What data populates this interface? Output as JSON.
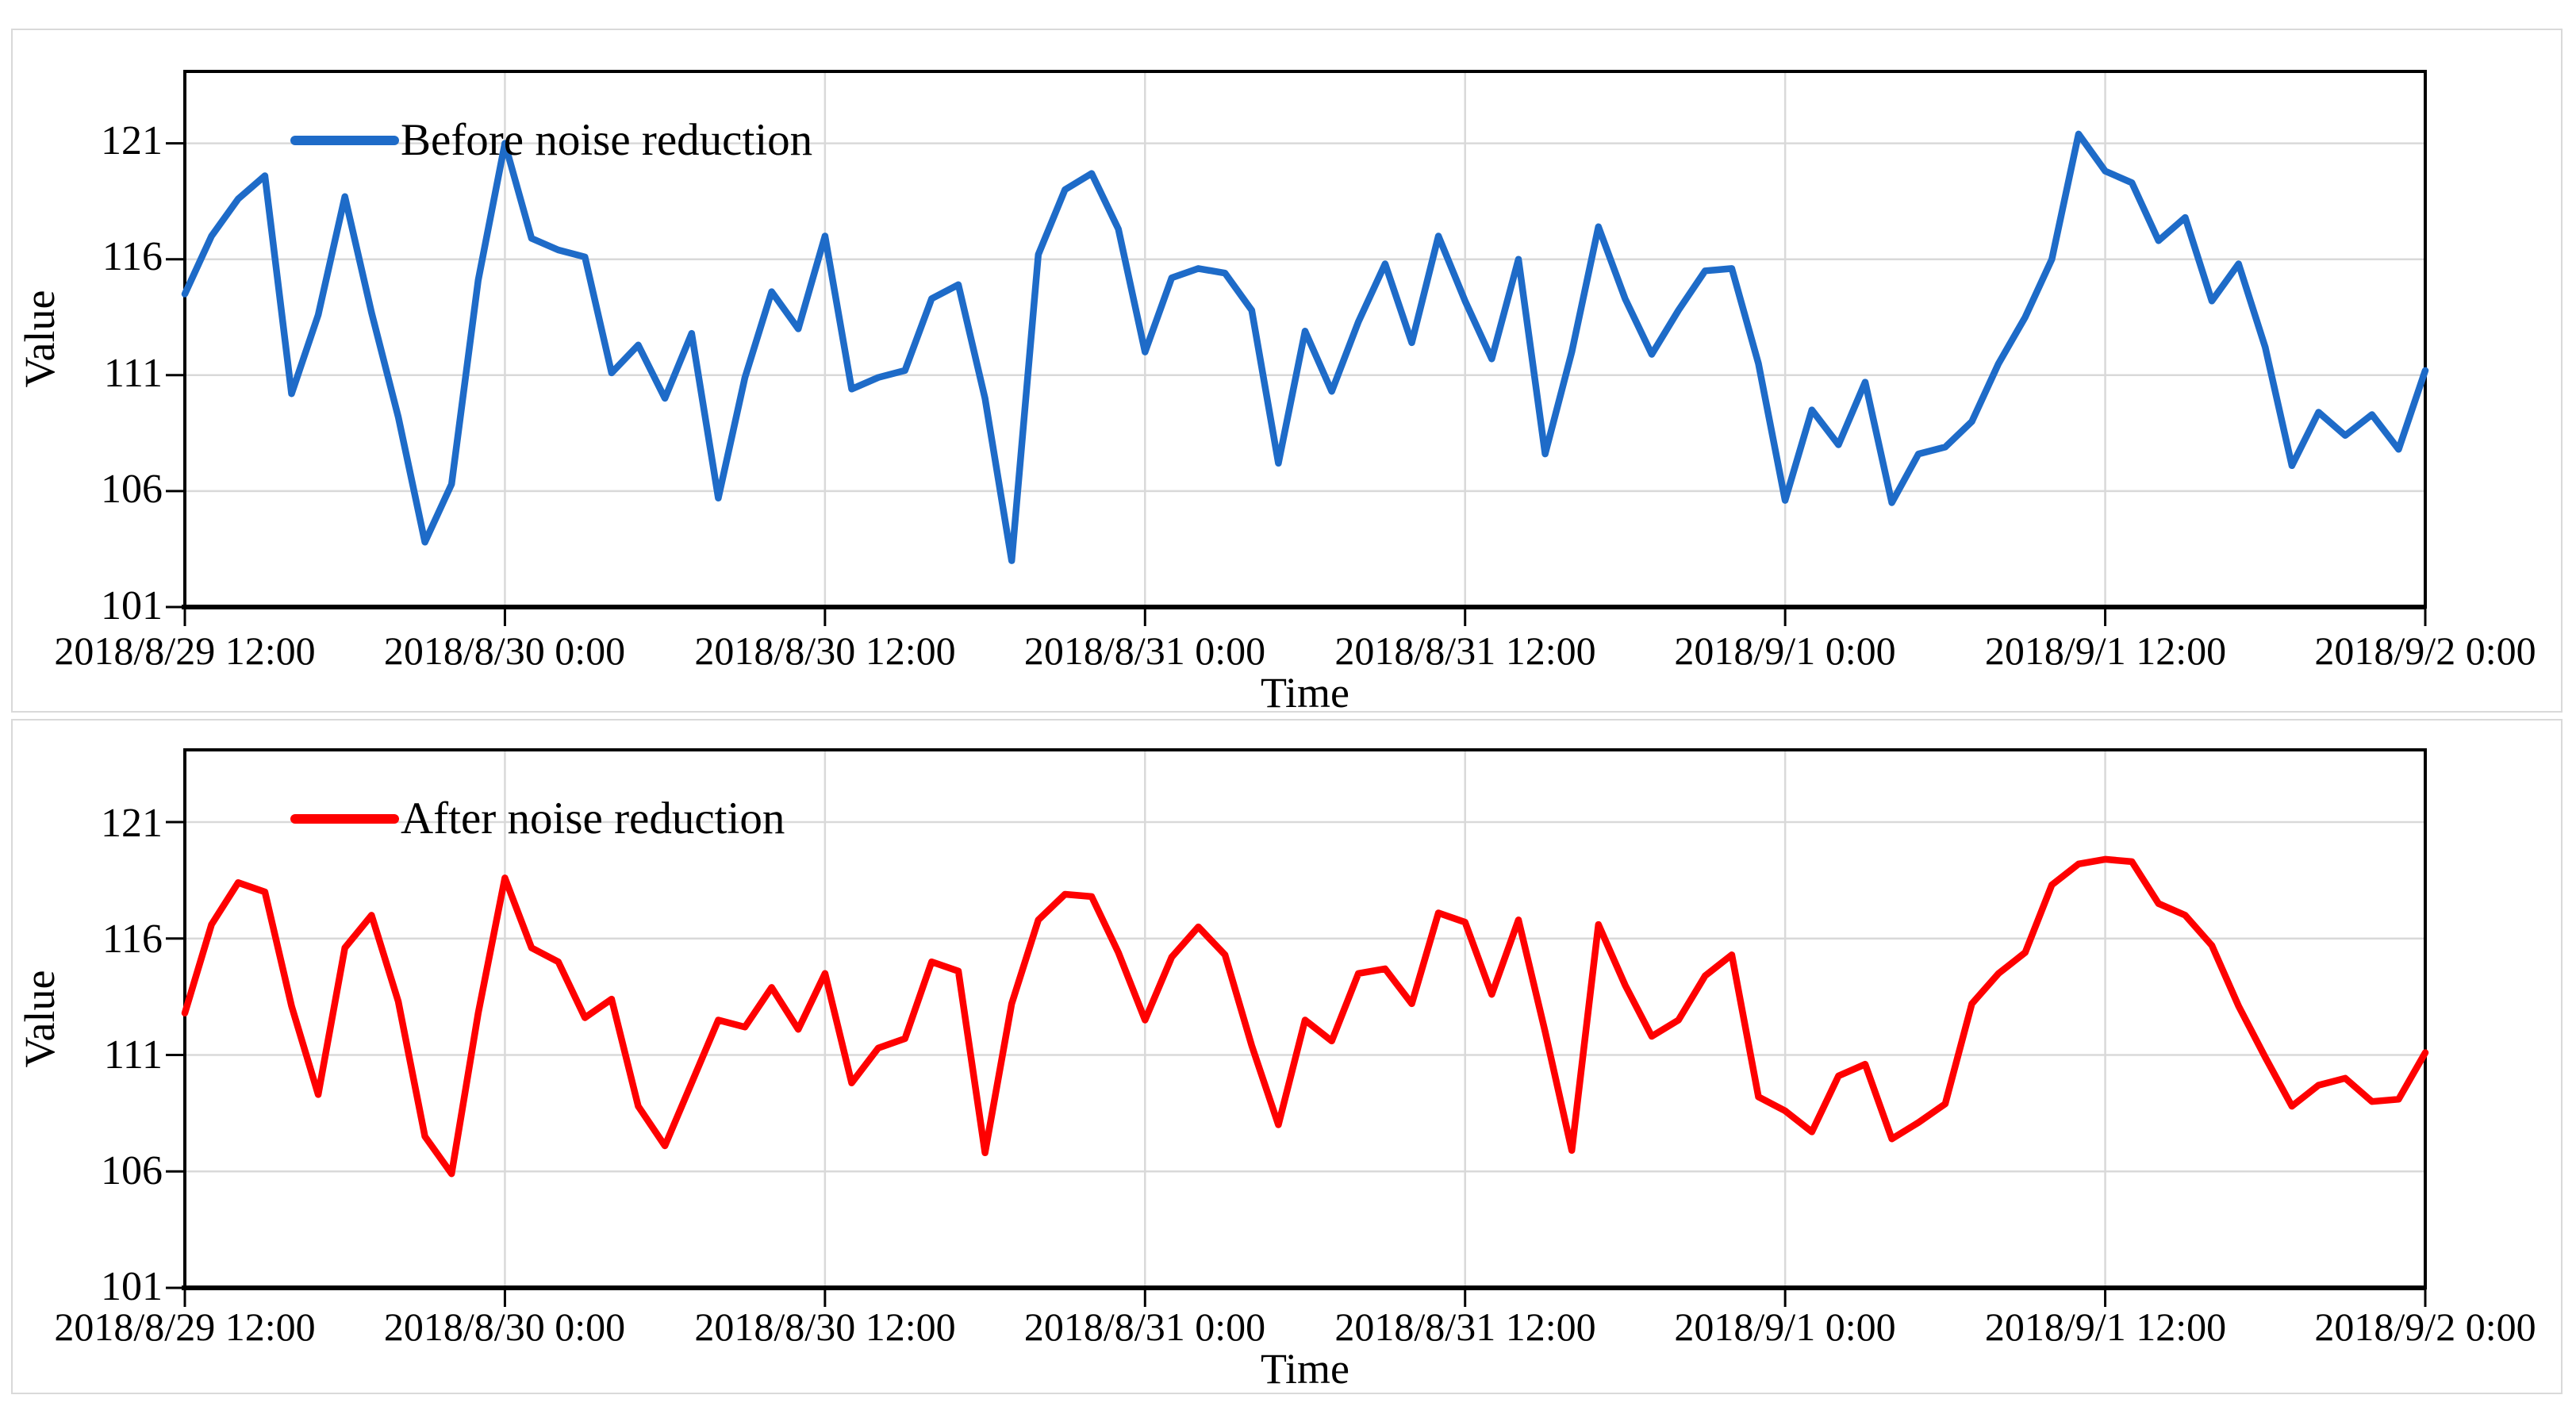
{
  "page": {
    "background": "#ffffff",
    "grid_color": "#d9d9d9",
    "axis_color": "#000000"
  },
  "chart_data": [
    {
      "type": "line",
      "series_name": "Before noise reduction",
      "legend_label": "Before noise reduction",
      "color": "#1e6bc8",
      "xlabel": "Time",
      "ylabel": "Value",
      "legend_position": "top-left",
      "grid": true,
      "ylim": [
        101,
        124.1
      ],
      "y_tick_values": [
        121,
        116,
        111,
        106,
        101
      ],
      "y_tick_labels": [
        "121",
        "116",
        "111",
        "106",
        "101"
      ],
      "x_tick_labels": [
        "2018/8/29 12:00",
        "2018/8/30 0:00",
        "2018/8/30 12:00",
        "2018/8/31 0:00",
        "2018/8/31 12:00",
        "2018/9/1 0:00",
        "2018/9/1 12:00",
        "2018/9/2 0:00"
      ],
      "x_start": "2018/8/29 12:00",
      "x_end": "2018/9/2 0:00",
      "x_interval_hours": 1,
      "values": [
        114.5,
        117.0,
        118.6,
        119.6,
        110.2,
        113.6,
        118.7,
        113.7,
        109.2,
        103.8,
        106.3,
        115.1,
        121.0,
        116.9,
        116.4,
        116.1,
        111.1,
        112.3,
        110.0,
        112.8,
        105.7,
        110.9,
        114.6,
        113.0,
        117.0,
        110.4,
        110.9,
        111.2,
        114.3,
        114.9,
        110.0,
        103.0,
        116.2,
        119.0,
        119.7,
        117.3,
        112.0,
        115.2,
        115.6,
        115.4,
        113.8,
        107.2,
        112.9,
        110.3,
        113.3,
        115.8,
        112.4,
        117.0,
        114.2,
        111.7,
        116.0,
        107.6,
        112.0,
        117.4,
        114.3,
        111.9,
        113.8,
        115.5,
        115.6,
        111.5,
        105.6,
        109.5,
        108.0,
        110.7,
        105.5,
        107.6,
        107.9,
        109.0,
        111.5,
        113.5,
        116.0,
        121.4,
        119.8,
        119.3,
        116.8,
        117.8,
        114.2,
        115.8,
        112.2,
        107.1,
        109.4,
        108.4,
        109.3,
        107.8,
        111.2
      ]
    },
    {
      "type": "line",
      "series_name": "After noise reduction",
      "legend_label": "After noise reduction",
      "color": "#fe0000",
      "xlabel": "Time",
      "ylabel": "Value",
      "legend_position": "top-left",
      "grid": true,
      "ylim": [
        101,
        124.1
      ],
      "y_tick_values": [
        121,
        116,
        111,
        106,
        101
      ],
      "y_tick_labels": [
        "121",
        "116",
        "111",
        "106",
        "101"
      ],
      "x_tick_labels": [
        "2018/8/29 12:00",
        "2018/8/30 0:00",
        "2018/8/30 12:00",
        "2018/8/31 0:00",
        "2018/8/31 12:00",
        "2018/9/1 0:00",
        "2018/9/1 12:00",
        "2018/9/2 0:00"
      ],
      "x_start": "2018/8/29 12:00",
      "x_end": "2018/9/2 0:00",
      "x_interval_hours": 1,
      "values": [
        112.8,
        116.6,
        118.4,
        118.0,
        113.1,
        109.3,
        115.6,
        117.0,
        113.3,
        107.5,
        105.9,
        112.8,
        118.6,
        115.6,
        115.0,
        112.6,
        113.4,
        108.8,
        107.1,
        109.8,
        112.5,
        112.2,
        113.9,
        112.1,
        114.5,
        109.8,
        111.3,
        111.7,
        115.0,
        114.6,
        106.8,
        113.2,
        116.8,
        117.9,
        117.8,
        115.4,
        112.5,
        115.2,
        116.5,
        115.3,
        111.4,
        108.0,
        112.5,
        111.6,
        114.5,
        114.7,
        113.2,
        117.1,
        116.7,
        113.6,
        116.8,
        112.0,
        106.9,
        116.6,
        114.0,
        111.8,
        112.5,
        114.4,
        115.3,
        109.2,
        108.6,
        107.7,
        110.1,
        110.6,
        107.4,
        108.1,
        108.9,
        113.2,
        114.5,
        115.4,
        118.3,
        119.2,
        119.4,
        119.3,
        117.5,
        117.0,
        115.7,
        113.1,
        110.9,
        108.8,
        109.7,
        110.0,
        109.0,
        109.1,
        111.1
      ]
    }
  ]
}
